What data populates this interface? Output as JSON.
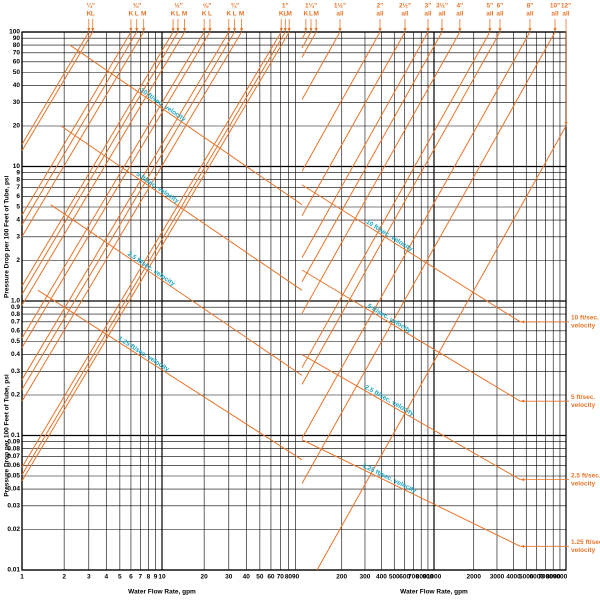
{
  "chart_data": [
    {
      "type": "line",
      "xscale": "log",
      "yscale": "log",
      "grid": true,
      "xlim": [
        1,
        100
      ],
      "ylim": [
        0.01,
        100
      ],
      "xticks": [
        1,
        2,
        3,
        4,
        5,
        6,
        7,
        8,
        9,
        10,
        20,
        30,
        40,
        50,
        60,
        70,
        80,
        90
      ],
      "yticks": [
        100,
        90,
        80,
        70,
        60,
        50,
        40,
        30,
        20,
        10,
        9,
        8,
        7,
        6,
        5,
        4,
        3,
        2,
        {
          "value": 1,
          "label": "1.0"
        },
        0.9,
        0.8,
        0.7,
        0.6,
        0.5,
        0.4,
        0.3,
        0.2,
        0.1,
        0.09,
        0.08,
        0.07,
        0.06,
        0.05,
        0.04,
        0.03,
        0.02,
        0.01
      ],
      "xlabel": "Water Flow Rate, gpm",
      "ylabels": [
        "Pressure Drop per 100 Feet of Tube, psi",
        "Pressure Drop per 100 Feet of Tube, psi"
      ],
      "color": "#e8742a",
      "label_color": "#1aa6c2",
      "tubes": [
        {
          "size": "¼\"",
          "lines": [
            {
              "type": "K",
              "x": [
                1,
                3.0
              ],
              "values": [
                14.6,
                100
              ]
            },
            {
              "type": "L",
              "x": [
                1,
                3.2
              ],
              "values": [
                13.1,
                100
              ]
            }
          ]
        },
        {
          "size": "⅜\"",
          "lines": [
            {
              "type": "K",
              "x": [
                1,
                6.0
              ],
              "values": [
                4.35,
                100
              ]
            },
            {
              "type": "L",
              "x": [
                1,
                6.6
              ],
              "values": [
                3.68,
                100
              ]
            },
            {
              "type": "M",
              "x": [
                1,
                7.4
              ],
              "values": [
                3.01,
                100
              ]
            }
          ]
        },
        {
          "size": "½\"",
          "lines": [
            {
              "type": "K",
              "x": [
                1,
                12
              ],
              "values": [
                1.29,
                100
              ]
            },
            {
              "type": "L",
              "x": [
                1,
                13
              ],
              "values": [
                1.12,
                100
              ]
            },
            {
              "type": "M",
              "x": [
                1,
                14.5
              ],
              "values": [
                0.93,
                100
              ]
            }
          ]
        },
        {
          "size": "⅝\"",
          "lines": [
            {
              "type": "K",
              "x": [
                1,
                20
              ],
              "values": [
                0.53,
                100
              ]
            },
            {
              "type": "L",
              "x": [
                1,
                22
              ],
              "values": [
                0.45,
                100
              ]
            }
          ]
        },
        {
          "size": "¾\"",
          "lines": [
            {
              "type": "K",
              "x": [
                1,
                30
              ],
              "values": [
                0.26,
                100
              ]
            },
            {
              "type": "L",
              "x": [
                1,
                33
              ],
              "values": [
                0.22,
                100
              ]
            },
            {
              "type": "M",
              "x": [
                1,
                37
              ],
              "values": [
                0.18,
                100
              ]
            }
          ]
        },
        {
          "size": "1\"",
          "lines": [
            {
              "type": "K",
              "x": [
                1,
                71
              ],
              "values": [
                0.058,
                100
              ]
            },
            {
              "type": "L",
              "x": [
                1,
                76
              ],
              "values": [
                0.051,
                100
              ]
            },
            {
              "type": "M",
              "x": [
                1,
                81
              ],
              "values": [
                0.046,
                100
              ]
            }
          ]
        }
      ],
      "velocities": [
        {
          "label": "10 ft/sec. velocity",
          "x": [
            2.2,
            100
          ],
          "values": [
            80,
            5.2
          ]
        },
        {
          "label": "5 ft/sec. velocity",
          "x": [
            1.9,
            100
          ],
          "values": [
            20,
            1.2
          ]
        },
        {
          "label": "2.5 ft/sec. velocity",
          "x": [
            1.6,
            100
          ],
          "values": [
            5.2,
            0.28
          ]
        },
        {
          "label": "1.25 ft/sec. velocity",
          "x": [
            1.3,
            100
          ],
          "values": [
            1.2,
            0.066
          ]
        }
      ]
    },
    {
      "type": "line",
      "xscale": "log",
      "yscale": "log",
      "grid": true,
      "xlim": [
        100,
        10000
      ],
      "ylim": [
        0.01,
        100
      ],
      "xticks": [
        200,
        300,
        400,
        500,
        600,
        700,
        800,
        900,
        1000,
        2000,
        3000,
        4000,
        5000,
        6000,
        7000,
        8000,
        9000
      ],
      "xlabel": "Water Flow Rate, gpm",
      "color": "#e8742a",
      "label_color": "#1aa6c2",
      "tubes": [
        {
          "size": "1¼\"",
          "lines": [
            {
              "type": "K",
              "x": [
                100,
                107
              ],
              "values": [
                88.8,
                100
              ]
            },
            {
              "type": "L",
              "x": [
                100,
                117
              ],
              "values": [
                76,
                100
              ]
            },
            {
              "type": "M",
              "x": [
                100,
                128
              ],
              "values": [
                64.9,
                100
              ]
            }
          ]
        },
        {
          "size": "1½\"",
          "lines": [
            {
              "type": "all",
              "x": [
                100,
                194
              ],
              "values": [
                31.4,
                100
              ]
            }
          ]
        },
        {
          "size": "2\"",
          "lines": [
            {
              "type": "all",
              "x": [
                100,
                390
              ],
              "values": [
                9.2,
                100
              ]
            }
          ]
        },
        {
          "size": "2½\"",
          "lines": [
            {
              "type": "all",
              "x": [
                100,
                603
              ],
              "values": [
                4.3,
                100
              ]
            }
          ]
        },
        {
          "size": "3\"",
          "lines": [
            {
              "type": "all",
              "x": [
                100,
                900
              ],
              "values": [
                2.1,
                100
              ]
            }
          ]
        },
        {
          "size": "3½\"",
          "lines": [
            {
              "type": "all",
              "x": [
                100,
                1150
              ],
              "values": [
                1.39,
                100
              ]
            }
          ]
        },
        {
          "size": "4\"",
          "lines": [
            {
              "type": "all",
              "x": [
                100,
                1570
              ],
              "values": [
                0.81,
                100
              ]
            }
          ]
        },
        {
          "size": "5\"",
          "lines": [
            {
              "type": "all",
              "x": [
                100,
                2650
              ],
              "values": [
                0.32,
                100
              ]
            }
          ]
        },
        {
          "size": "6\"",
          "lines": [
            {
              "type": "all",
              "x": [
                100,
                3160
              ],
              "values": [
                0.24,
                100
              ]
            }
          ]
        },
        {
          "size": "8\"",
          "lines": [
            {
              "type": "all",
              "x": [
                100,
                5330
              ],
              "values": [
                0.095,
                100
              ]
            }
          ]
        },
        {
          "size": "10\"",
          "lines": [
            {
              "type": "all",
              "x": [
                100,
                8260
              ],
              "values": [
                0.044,
                100
              ]
            }
          ]
        },
        {
          "size": "12\"",
          "lines": [
            {
              "type": "all",
              "x": [
                130,
                10000
              ],
              "values": [
                0.01,
                20
              ]
            }
          ]
        }
      ],
      "velocities": [
        {
          "label": "10 ft/sec. velocity",
          "note": [
            "10 ft/sec.",
            "velocity"
          ],
          "x": [
            100,
            4500
          ],
          "values": [
            7.3,
            0.7
          ]
        },
        {
          "label": "5 ft/sec. velocity",
          "note": [
            "5 ft/sec.",
            "velocity"
          ],
          "x": [
            100,
            4500
          ],
          "values": [
            1.7,
            0.18
          ]
        },
        {
          "label": "2.5 ft/sec. velocity",
          "note": [
            "2.5 ft/sec.",
            "velocity"
          ],
          "x": [
            100,
            4500
          ],
          "values": [
            0.4,
            0.047
          ]
        },
        {
          "label": "1.25 ft/sec. velocity",
          "note": [
            "1.25 ft/sec.",
            "velocity"
          ],
          "x": [
            100,
            4500
          ],
          "values": [
            0.093,
            0.015
          ]
        }
      ]
    }
  ]
}
